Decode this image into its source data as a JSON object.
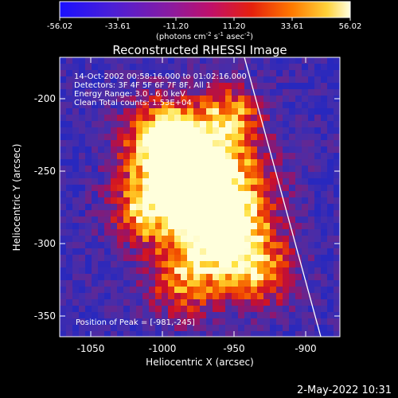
{
  "colorbar": {
    "ticks": [
      "-56.02",
      "-33.61",
      "-11.20",
      "11.20",
      "33.61",
      "56.02"
    ],
    "units_text": "(photons cm",
    "units_exp1": "-2",
    "units_mid": " s",
    "units_exp2": "-1",
    "units_mid2": " asec",
    "units_exp3": "-2",
    "units_end": ")"
  },
  "plot": {
    "title": "Reconstructed RHESSI Image",
    "xlabel": "Heliocentric X (arcsec)",
    "ylabel": "Heliocentric Y (arcsec)",
    "x_ticks": [
      "-1050",
      "-1000",
      "-950",
      "-900"
    ],
    "y_ticks": [
      "-200",
      "-250",
      "-300",
      "-350"
    ],
    "info_lines": [
      "14-Oct-2002 00:58:16.000 to 01:02:16.000",
      "Detectors: 3F 4F 5F 6F 7F 8F, All 1",
      "Energy Range: 3.0 - 6.0 keV",
      "Clean     Total counts: 1.53E+04"
    ],
    "peak_text": "Position of Peak = [-981,-245]"
  },
  "footer": {
    "timestamp": "2-May-2022 10:31"
  },
  "colors": {
    "limb": "#ffffff",
    "background": "#000000"
  }
}
